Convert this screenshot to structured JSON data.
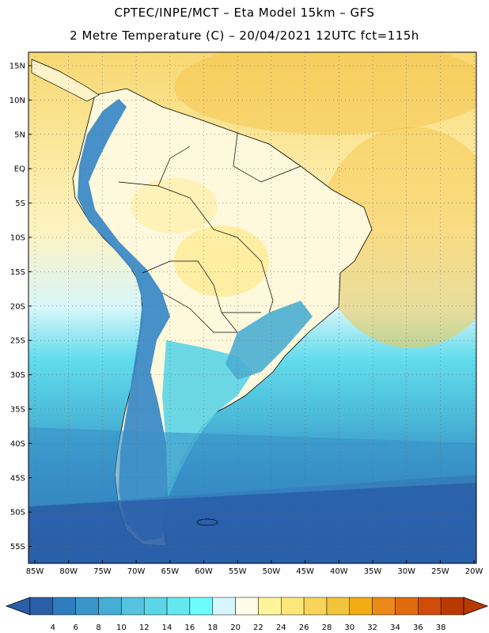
{
  "title_line1": "CPTEC/INPE/MCT –  Eta Model 15km – GFS",
  "title_line2": "2 Metre Temperature (C) – 20/04/2021 12UTC fct=115h",
  "lat_labels": [
    "15N",
    "10N",
    "5N",
    "EQ",
    "5S",
    "10S",
    "15S",
    "20S",
    "25S",
    "30S",
    "35S",
    "40S",
    "45S",
    "50S",
    "55S"
  ],
  "lon_labels": [
    "85W",
    "80W",
    "75W",
    "70W",
    "65W",
    "60W",
    "55W",
    "50W",
    "45W",
    "40W",
    "35W",
    "30W",
    "25W",
    "20W"
  ],
  "colorbar": {
    "labels": [
      "4",
      "6",
      "8",
      "10",
      "12",
      "14",
      "16",
      "18",
      "20",
      "22",
      "24",
      "26",
      "28",
      "30",
      "32",
      "34",
      "36",
      "38"
    ],
    "colors": [
      "#2a5fa8",
      "#2e7dbf",
      "#3a96c8",
      "#46aed4",
      "#56c4de",
      "#5cd6e6",
      "#64e8f0",
      "#6ffcff",
      "#d5f7fd",
      "#fefbe8",
      "#fdf59a",
      "#fde77a",
      "#f9d45a",
      "#f2c43c",
      "#f4ac14",
      "#eb8a18",
      "#e06a10",
      "#d04c08",
      "#b83a00"
    ]
  }
}
